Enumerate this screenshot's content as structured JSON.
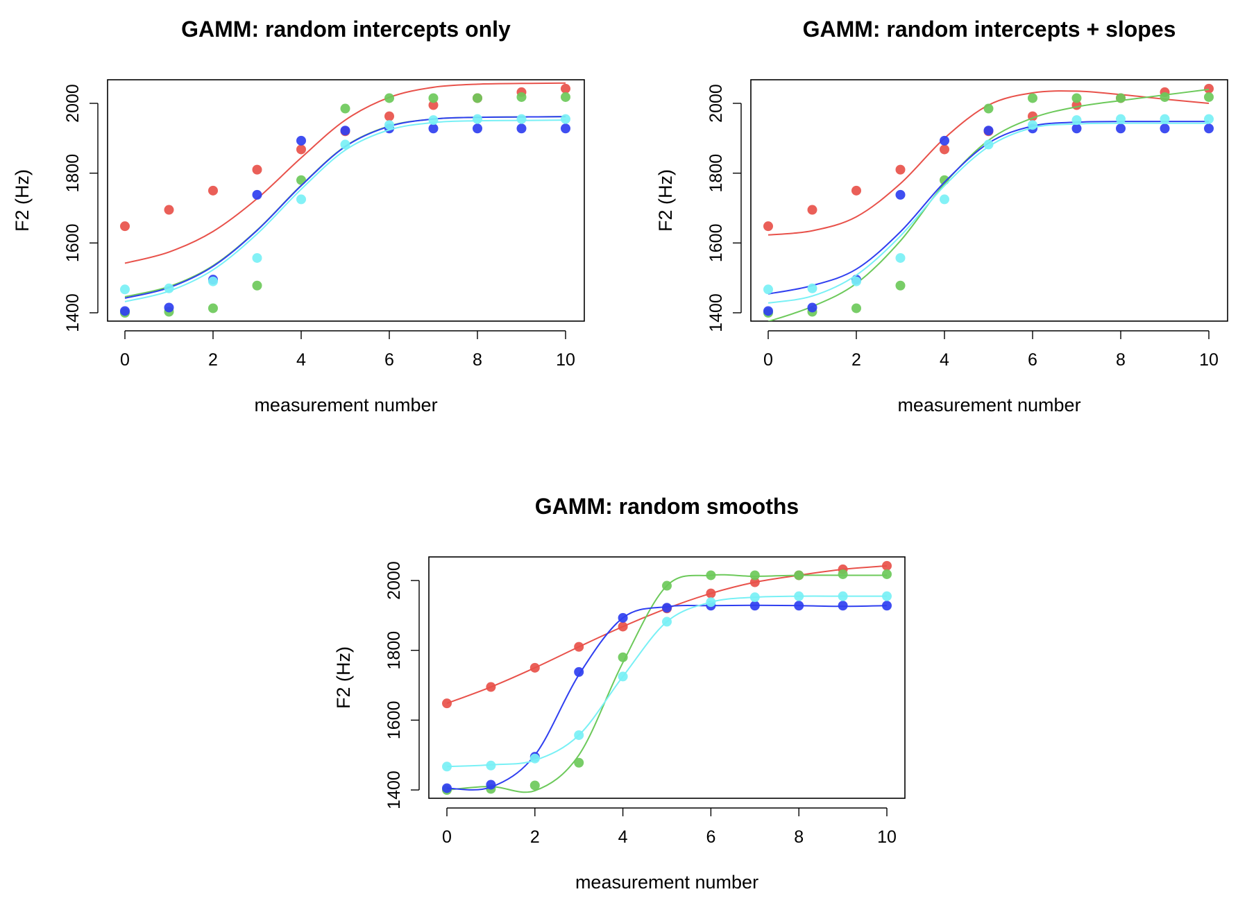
{
  "chart_data": [
    {
      "type": "scatter",
      "title": "GAMM: random intercepts only",
      "xlabel": "measurement number",
      "ylabel": "F2 (Hz)",
      "xlim": [
        0,
        10
      ],
      "ylim": [
        1400,
        2000
      ],
      "x_ticks": [
        0,
        2,
        4,
        6,
        8,
        10
      ],
      "y_ticks": [
        1400,
        1600,
        1800,
        2000
      ],
      "grid": false,
      "legend": "none",
      "x": [
        0,
        1,
        2,
        3,
        4,
        5,
        6,
        7,
        8,
        9,
        10
      ],
      "series": [
        {
          "color": "#e8514a",
          "points": [
            1648,
            1695,
            1750,
            1810,
            1868,
            1920,
            1963,
            1995,
            2015,
            2032,
            2042
          ],
          "fit": [
            1542,
            1574,
            1633,
            1727,
            1844,
            1952,
            2017,
            2046,
            2055,
            2057,
            2058
          ]
        },
        {
          "color": "#6cc95a",
          "points": [
            1400,
            1403,
            1413,
            1478,
            1780,
            1985,
            2015,
            2015,
            2015,
            2018,
            2018
          ],
          "fit": [
            1446,
            1475,
            1535,
            1637,
            1765,
            1877,
            1935,
            1955,
            1960,
            1961,
            1962
          ]
        },
        {
          "color": "#2f3ff0",
          "points": [
            1405,
            1415,
            1495,
            1738,
            1893,
            1922,
            1928,
            1928,
            1928,
            1928,
            1928
          ],
          "fit": [
            1442,
            1472,
            1533,
            1636,
            1764,
            1876,
            1934,
            1955,
            1960,
            1961,
            1962
          ]
        },
        {
          "color": "#78f0f5",
          "points": [
            1467,
            1470,
            1490,
            1557,
            1725,
            1882,
            1938,
            1952,
            1955,
            1955,
            1955
          ],
          "fit": [
            1432,
            1462,
            1523,
            1626,
            1754,
            1866,
            1924,
            1945,
            1950,
            1951,
            1952
          ]
        }
      ]
    },
    {
      "type": "scatter",
      "title": "GAMM: random intercepts + slopes",
      "xlabel": "measurement number",
      "ylabel": "F2 (Hz)",
      "xlim": [
        0,
        10
      ],
      "ylim": [
        1400,
        2000
      ],
      "x_ticks": [
        0,
        2,
        4,
        6,
        8,
        10
      ],
      "y_ticks": [
        1400,
        1600,
        1800,
        2000
      ],
      "grid": false,
      "legend": "none",
      "x": [
        0,
        1,
        2,
        3,
        4,
        5,
        6,
        7,
        8,
        9,
        10
      ],
      "series": [
        {
          "color": "#e8514a",
          "points": [
            1648,
            1695,
            1750,
            1810,
            1868,
            1920,
            1963,
            1995,
            2015,
            2032,
            2042
          ],
          "fit": [
            1623,
            1635,
            1675,
            1770,
            1900,
            1995,
            2030,
            2035,
            2025,
            2012,
            2000
          ]
        },
        {
          "color": "#6cc95a",
          "points": [
            1400,
            1403,
            1413,
            1478,
            1780,
            1985,
            2015,
            2015,
            2015,
            2018,
            2018
          ],
          "fit": [
            1375,
            1418,
            1484,
            1606,
            1770,
            1894,
            1958,
            1990,
            2008,
            2024,
            2040
          ]
        },
        {
          "color": "#2f3ff0",
          "points": [
            1405,
            1415,
            1495,
            1738,
            1893,
            1922,
            1928,
            1928,
            1928,
            1928,
            1928
          ],
          "fit": [
            1454,
            1478,
            1525,
            1632,
            1774,
            1886,
            1935,
            1946,
            1948,
            1948,
            1948
          ]
        },
        {
          "color": "#78f0f5",
          "points": [
            1467,
            1470,
            1490,
            1557,
            1725,
            1882,
            1938,
            1952,
            1955,
            1955,
            1955
          ],
          "fit": [
            1428,
            1448,
            1508,
            1620,
            1764,
            1876,
            1930,
            1941,
            1943,
            1943,
            1943
          ]
        }
      ]
    },
    {
      "type": "scatter",
      "title": "GAMM: random smooths",
      "xlabel": "measurement number",
      "ylabel": "F2 (Hz)",
      "xlim": [
        0,
        10
      ],
      "ylim": [
        1400,
        2000
      ],
      "x_ticks": [
        0,
        2,
        4,
        6,
        8,
        10
      ],
      "y_ticks": [
        1400,
        1600,
        1800,
        2000
      ],
      "grid": false,
      "legend": "none",
      "x": [
        0,
        1,
        2,
        3,
        4,
        5,
        6,
        7,
        8,
        9,
        10
      ],
      "series": [
        {
          "color": "#e8514a",
          "points": [
            1648,
            1695,
            1750,
            1810,
            1868,
            1920,
            1963,
            1995,
            2015,
            2032,
            2042
          ],
          "fit": [
            1648,
            1695,
            1750,
            1810,
            1868,
            1920,
            1963,
            1995,
            2015,
            2032,
            2042
          ]
        },
        {
          "color": "#6cc95a",
          "points": [
            1400,
            1403,
            1413,
            1478,
            1780,
            1985,
            2015,
            2015,
            2015,
            2018,
            2018
          ],
          "fit": [
            1400,
            1410,
            1398,
            1500,
            1765,
            1985,
            2015,
            2012,
            2015,
            2015,
            2015
          ]
        },
        {
          "color": "#2f3ff0",
          "points": [
            1405,
            1415,
            1495,
            1738,
            1893,
            1922,
            1928,
            1928,
            1928,
            1928,
            1928
          ],
          "fit": [
            1405,
            1408,
            1500,
            1730,
            1893,
            1925,
            1928,
            1929,
            1928,
            1926,
            1928
          ]
        },
        {
          "color": "#78f0f5",
          "points": [
            1467,
            1470,
            1490,
            1557,
            1725,
            1882,
            1938,
            1952,
            1955,
            1955,
            1955
          ],
          "fit": [
            1467,
            1472,
            1485,
            1557,
            1725,
            1882,
            1938,
            1952,
            1955,
            1955,
            1955
          ]
        }
      ]
    }
  ]
}
